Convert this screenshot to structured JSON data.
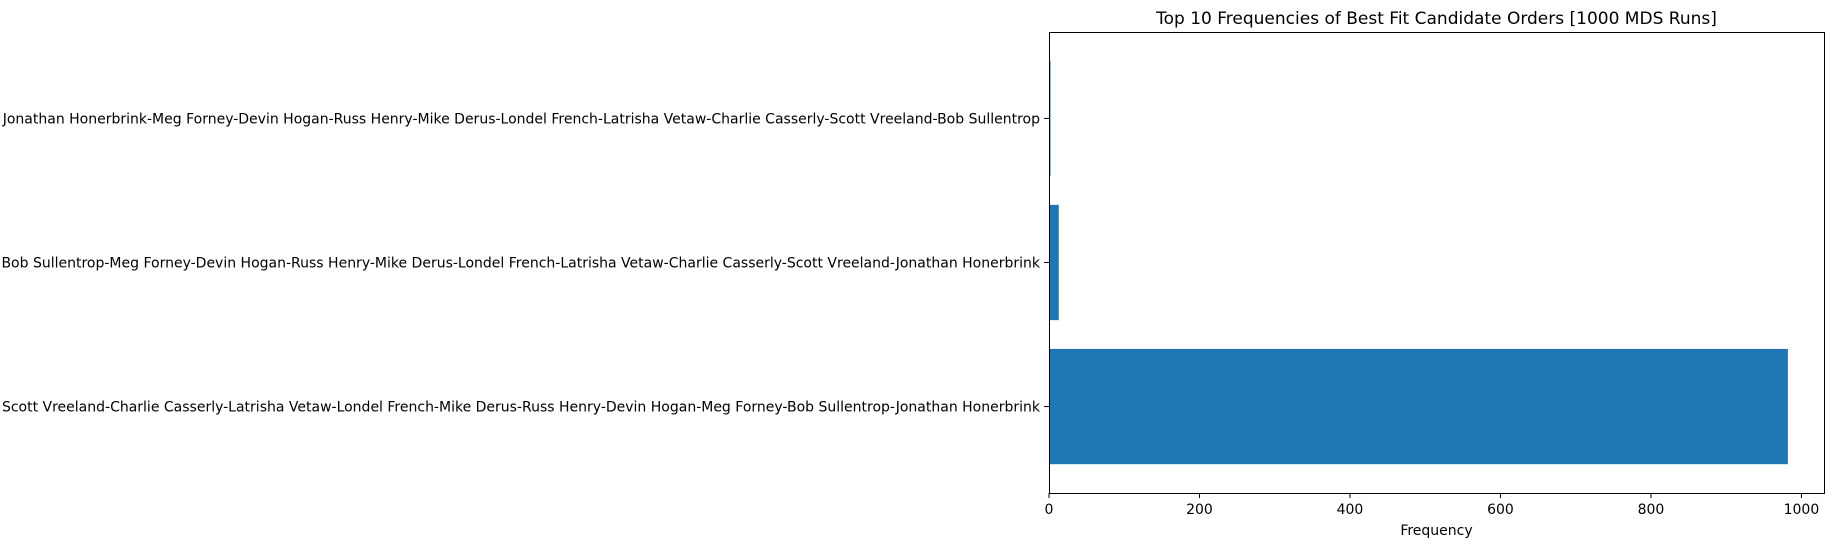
{
  "chart_data": {
    "type": "bar",
    "orientation": "horizontal",
    "title": "Top 10 Frequencies of Best Fit Candidate Orders [1000 MDS Runs]",
    "xlabel": "Frequency",
    "ylabel": "",
    "xlim": [
      0,
      1030
    ],
    "x_ticks": [
      0,
      200,
      400,
      600,
      800,
      1000
    ],
    "categories": [
      "Scott Vreeland-Charlie Casserly-Latrisha Vetaw-Londel French-Mike Derus-Russ Henry-Devin Hogan-Meg Forney-Bob Sullentrop-Jonathan Honerbrink",
      "Bob Sullentrop-Meg Forney-Devin Hogan-Russ Henry-Mike Derus-Londel French-Latrisha Vetaw-Charlie Casserly-Scott Vreeland-Jonathan Honerbrink",
      "Jonathan Honerbrink-Meg Forney-Devin Hogan-Russ Henry-Mike Derus-Londel French-Latrisha Vetaw-Charlie Casserly-Scott Vreeland-Bob Sullentrop"
    ],
    "values": [
      982,
      13,
      2
    ],
    "bar_color": "#1f77b4",
    "grid": false
  }
}
